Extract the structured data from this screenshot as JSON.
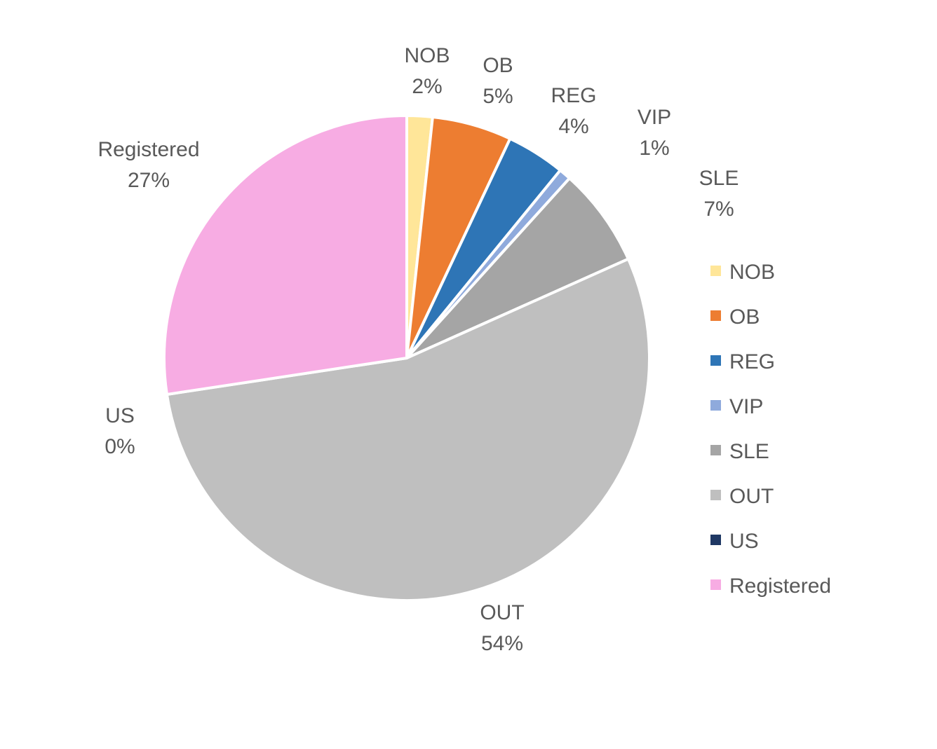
{
  "chart_data": {
    "type": "pie",
    "title": "",
    "start_angle_deg": 0,
    "direction": "clockwise",
    "legend_position": "right",
    "slices": [
      {
        "label": "NOB",
        "value": 1.7,
        "display": "2%",
        "color": "#FFE699"
      },
      {
        "label": "OB",
        "value": 5.3,
        "display": "5%",
        "color": "#ED7D31"
      },
      {
        "label": "REG",
        "value": 3.9,
        "display": "4%",
        "color": "#2E75B6"
      },
      {
        "label": "VIP",
        "value": 0.8,
        "display": "1%",
        "color": "#8FAADC"
      },
      {
        "label": "SLE",
        "value": 6.6,
        "display": "7%",
        "color": "#A5A5A5"
      },
      {
        "label": "OUT",
        "value": 54.3,
        "display": "54%",
        "color": "#BFBFBF"
      },
      {
        "label": "US",
        "value": 0.0,
        "display": "0%",
        "color": "#1F3864"
      },
      {
        "label": "Registered",
        "value": 27.4,
        "display": "27%",
        "color": "#F7ACE3"
      }
    ]
  }
}
